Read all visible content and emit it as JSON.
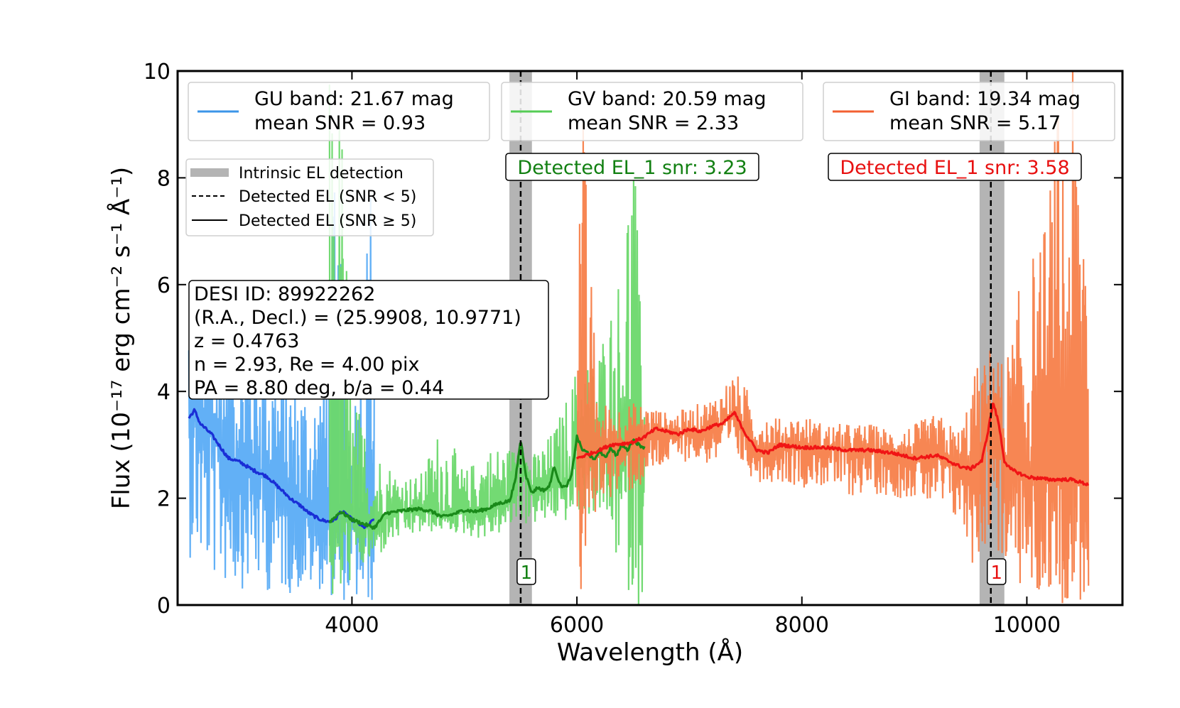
{
  "chart_data": {
    "type": "line",
    "xlabel": "Wavelength (Å)",
    "ylabel_text": "Flux",
    "ylabel_units": "(10⁻¹⁷ erg cm⁻² s⁻¹ Å⁻¹)",
    "xlim": [
      2450,
      10850
    ],
    "ylim": [
      0,
      10
    ],
    "x_ticks": [
      4000,
      6000,
      8000,
      10000
    ],
    "y_ticks": [
      0,
      2,
      4,
      6,
      8,
      10
    ],
    "grid": false,
    "colors": {
      "gu_raw": "#5aacf5",
      "gu_smooth": "#1a2fd6",
      "gv_raw": "#6cd86c",
      "gv_smooth": "#1a8a1a",
      "gi_raw": "#f7804a",
      "gi_smooth": "#f01515",
      "el_band": "#b4b4b4",
      "gv_label": "#128012",
      "gi_label": "#e81010"
    },
    "legends": [
      {
        "name": "gu-legend",
        "series_color": "#3b95e8",
        "line1": "GU band: 21.67 mag",
        "line2": "mean SNR = 0.93"
      },
      {
        "name": "gv-legend",
        "series_color": "#55cc55",
        "line1": "GV band: 20.59 mag",
        "line2": "mean SNR = 2.33"
      },
      {
        "name": "gi-legend",
        "series_color": "#f36032",
        "line1": "GI band: 19.34 mag",
        "line2": "mean SNR = 5.17"
      }
    ],
    "el_legend": [
      {
        "style": "band",
        "label": "Intrinsic EL detection"
      },
      {
        "style": "dashed",
        "label": "Detected EL (SNR < 5)"
      },
      {
        "style": "solid",
        "label": "Detected EL (SNR ≥ 5)"
      }
    ],
    "info_box": [
      "DESI ID: 89922262",
      "(R.A., Decl.) = (25.9908, 10.9771)",
      "z = 0.4763",
      "n = 2.93, Re = 4.00 pix",
      "PA = 8.80 deg, b/a = 0.44"
    ],
    "detections": [
      {
        "band": "GV",
        "label": "Detected EL_1 snr: 3.23",
        "marker": "1",
        "x": 5500,
        "band_range": [
          5400,
          5600
        ],
        "line_style": "dashed"
      },
      {
        "band": "GI",
        "label": "Detected EL_1 snr: 3.58",
        "marker": "1",
        "x": 9680,
        "band_range": [
          9580,
          9800
        ],
        "line_style": "dashed"
      }
    ],
    "series": [
      {
        "name": "GU",
        "x_range": [
          2550,
          4200
        ],
        "smooth": {
          "x": [
            2550,
            2600,
            2650,
            2700,
            2750,
            2800,
            2850,
            2900,
            2950,
            3000,
            3050,
            3100,
            3150,
            3200,
            3250,
            3300,
            3350,
            3400,
            3450,
            3500,
            3550,
            3600,
            3650,
            3700,
            3750,
            3800,
            3850,
            3900,
            3950,
            4000,
            4050,
            4100,
            4150,
            4200
          ],
          "y": [
            3.5,
            3.65,
            3.4,
            3.3,
            3.2,
            3.05,
            2.9,
            2.75,
            2.72,
            2.68,
            2.62,
            2.55,
            2.5,
            2.45,
            2.4,
            2.3,
            2.2,
            2.1,
            2.0,
            1.92,
            1.85,
            1.75,
            1.68,
            1.62,
            1.58,
            1.56,
            1.6,
            1.75,
            1.7,
            1.6,
            1.55,
            1.45,
            1.5,
            1.62
          ]
        },
        "raw_envelope": {
          "x": [
            2550,
            2700,
            2900,
            3100,
            3300,
            3500,
            3700,
            3850,
            4000,
            4200
          ],
          "low": [
            0.9,
            0.5,
            0.3,
            0.3,
            0.2,
            0.2,
            0.3,
            0.1,
            0.0,
            0.0
          ],
          "high": [
            6.0,
            5.0,
            5.0,
            5.5,
            4.8,
            4.5,
            4.2,
            8.0,
            3.5,
            9.5
          ]
        }
      },
      {
        "name": "GV",
        "x_range": [
          3800,
          6600
        ],
        "smooth": {
          "x": [
            3800,
            3900,
            4000,
            4100,
            4200,
            4300,
            4400,
            4500,
            4600,
            4700,
            4800,
            4900,
            5000,
            5100,
            5200,
            5300,
            5400,
            5450,
            5500,
            5550,
            5600,
            5650,
            5700,
            5750,
            5800,
            5850,
            5900,
            5950,
            6000,
            6050,
            6100,
            6150,
            6200,
            6250,
            6300,
            6350,
            6400,
            6450,
            6500,
            6550,
            6600
          ],
          "y": [
            1.55,
            1.75,
            1.6,
            1.52,
            1.45,
            1.72,
            1.75,
            1.78,
            1.8,
            1.76,
            1.65,
            1.7,
            1.78,
            1.75,
            1.8,
            1.9,
            1.95,
            2.3,
            3.1,
            2.4,
            2.1,
            2.2,
            2.15,
            2.2,
            2.6,
            2.25,
            2.2,
            2.4,
            3.15,
            2.9,
            2.85,
            2.7,
            2.9,
            2.75,
            2.95,
            2.8,
            3.0,
            2.9,
            3.1,
            3.0,
            2.95
          ]
        },
        "raw_envelope": {
          "x": [
            3800,
            3850,
            3900,
            4000,
            4200,
            4400,
            4600,
            4800,
            5000,
            5200,
            5400,
            5600,
            5800,
            6000,
            6200,
            6400,
            6500,
            6550,
            6600
          ],
          "low": [
            0.0,
            0.0,
            0.0,
            0.5,
            0.8,
            1.2,
            1.3,
            1.4,
            1.3,
            1.2,
            1.4,
            1.5,
            1.5,
            1.6,
            1.7,
            0.5,
            0.0,
            0.0,
            0.0
          ],
          "high": [
            10.0,
            10.0,
            10.0,
            4.0,
            3.0,
            2.5,
            2.4,
            3.5,
            2.5,
            3.0,
            3.0,
            2.8,
            3.3,
            4.5,
            5.0,
            6.5,
            10.0,
            6.0,
            5.0
          ]
        }
      },
      {
        "name": "GI",
        "x_range": [
          6000,
          10550
        ],
        "smooth": {
          "x": [
            6000,
            6100,
            6200,
            6300,
            6400,
            6500,
            6600,
            6700,
            6800,
            6900,
            7000,
            7100,
            7200,
            7300,
            7400,
            7500,
            7600,
            7700,
            7800,
            8000,
            8200,
            8400,
            8600,
            8800,
            9000,
            9200,
            9400,
            9500,
            9600,
            9650,
            9700,
            9750,
            9800,
            9850,
            9900,
            10000,
            10200,
            10400,
            10550
          ],
          "y": [
            2.75,
            2.82,
            2.9,
            3.0,
            3.02,
            3.05,
            3.15,
            3.3,
            3.25,
            3.2,
            3.3,
            3.25,
            3.35,
            3.4,
            3.6,
            3.2,
            2.9,
            2.85,
            3.0,
            2.95,
            2.95,
            2.9,
            2.9,
            2.85,
            2.75,
            2.8,
            2.6,
            2.55,
            2.7,
            3.2,
            3.8,
            3.4,
            2.7,
            2.55,
            2.5,
            2.4,
            2.35,
            2.35,
            2.25
          ]
        },
        "raw_envelope": {
          "x": [
            6000,
            6050,
            6100,
            6200,
            6400,
            6600,
            6800,
            7000,
            7200,
            7400,
            7600,
            7800,
            8000,
            8200,
            8400,
            8600,
            8800,
            9000,
            9200,
            9400,
            9550,
            9600,
            9700,
            9800,
            9900,
            10000,
            10100,
            10200,
            10300,
            10400,
            10500,
            10550
          ],
          "low": [
            0.0,
            0.0,
            1.0,
            2.0,
            2.0,
            2.2,
            2.6,
            2.7,
            2.6,
            2.7,
            2.3,
            2.3,
            2.2,
            2.2,
            2.0,
            2.1,
            2.0,
            2.0,
            1.7,
            1.5,
            0.5,
            1.0,
            1.2,
            0.5,
            0.3,
            0.2,
            0.0,
            0.2,
            0.0,
            0.0,
            0.0,
            0.0
          ],
          "high": [
            10.0,
            10.0,
            7.0,
            3.8,
            3.8,
            3.8,
            3.6,
            3.7,
            3.9,
            4.4,
            3.8,
            3.5,
            3.6,
            3.4,
            3.4,
            3.4,
            3.3,
            3.4,
            3.6,
            3.3,
            4.5,
            4.5,
            5.0,
            4.5,
            5.5,
            7.0,
            6.5,
            8.0,
            10.0,
            10.0,
            10.0,
            10.0
          ]
        }
      }
    ]
  }
}
